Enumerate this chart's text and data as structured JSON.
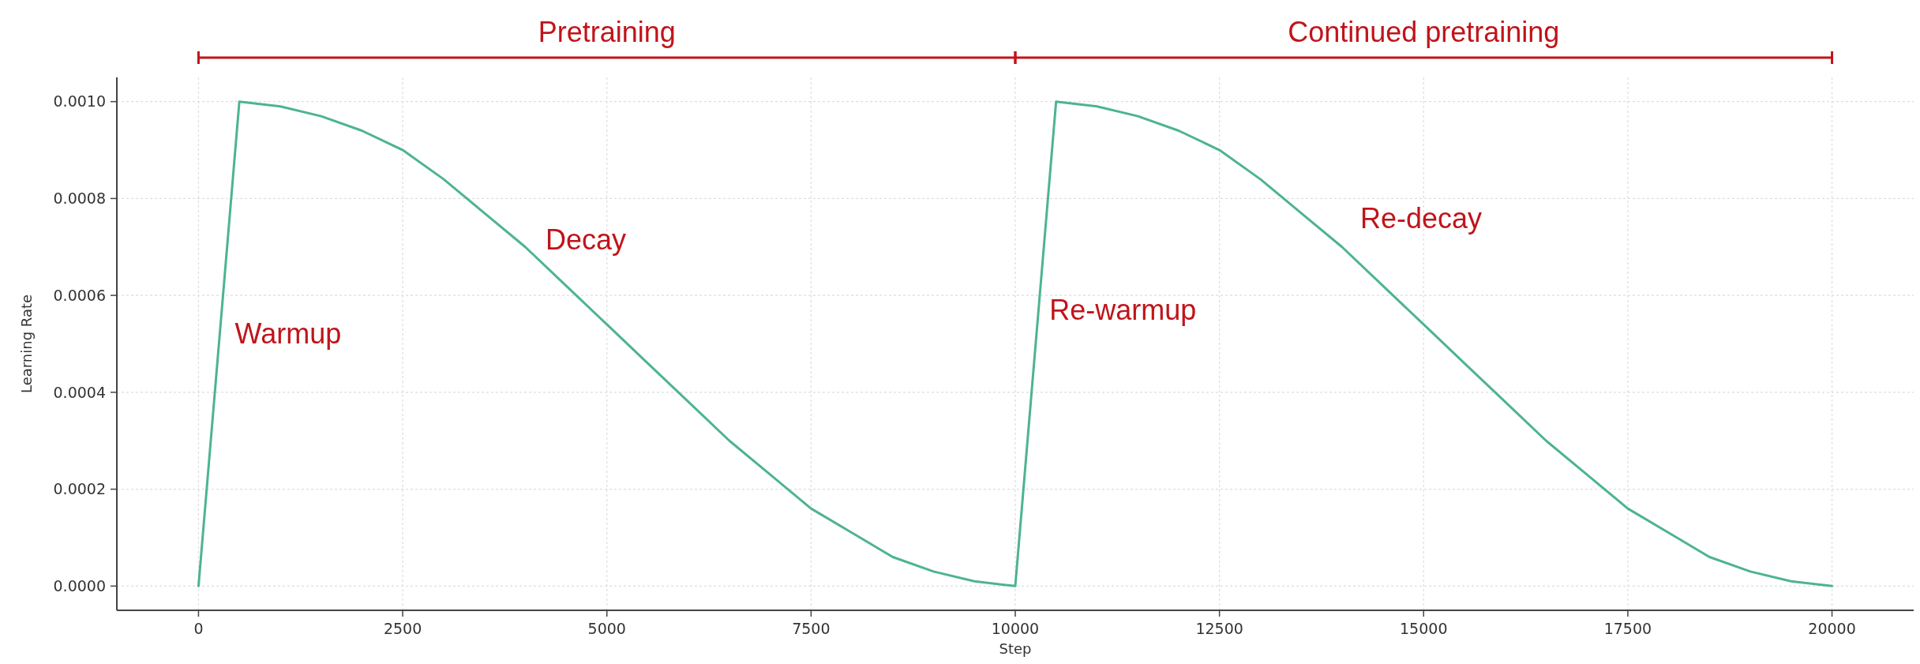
{
  "chart_data": {
    "type": "line",
    "xlabel": "Step",
    "ylabel": "Learning Rate",
    "x": [
      0,
      500,
      1000,
      1500,
      2000,
      2500,
      3000,
      3500,
      4000,
      4500,
      5000,
      5500,
      6000,
      6500,
      7000,
      7500,
      8000,
      8500,
      9000,
      9500,
      10000,
      10500,
      11000,
      11500,
      12000,
      12500,
      13000,
      13500,
      14000,
      14500,
      15000,
      15500,
      16000,
      16500,
      17000,
      17500,
      18000,
      18500,
      19000,
      19500,
      20000
    ],
    "series": [
      {
        "color": "#4db48e",
        "values": [
          0,
          0.001,
          0.00099,
          0.00097,
          0.00094,
          0.0009,
          0.00084,
          0.00077,
          0.0007,
          0.00062,
          0.00054,
          0.00046,
          0.00038,
          0.0003,
          0.00023,
          0.00016,
          0.00011,
          6e-05,
          3e-05,
          1e-05,
          0,
          0.001,
          0.00099,
          0.00097,
          0.00094,
          0.0009,
          0.00084,
          0.00077,
          0.0007,
          0.00062,
          0.00054,
          0.00046,
          0.00038,
          0.0003,
          0.00023,
          0.00016,
          0.00011,
          6e-05,
          3e-05,
          1e-05,
          0
        ]
      }
    ],
    "xlim": [
      -1000,
      21000
    ],
    "xticks": [
      0,
      2500,
      5000,
      7500,
      10000,
      12500,
      15000,
      17500,
      20000
    ],
    "ylim": [
      -5e-05,
      0.00105
    ],
    "yticks": [
      {
        "value": 0,
        "label": "0.0000"
      },
      {
        "value": 0.0002,
        "label": "0.0002"
      },
      {
        "value": 0.0004,
        "label": "0.0004"
      },
      {
        "value": 0.0006,
        "label": "0.0006"
      },
      {
        "value": 0.0008,
        "label": "0.0008"
      },
      {
        "value": 0.001,
        "label": "0.0010"
      }
    ],
    "grid": true,
    "annotations": [
      "Pretraining",
      "Continued pretraining",
      "Warmup",
      "Decay",
      "Re-warmup",
      "Re-decay"
    ]
  }
}
